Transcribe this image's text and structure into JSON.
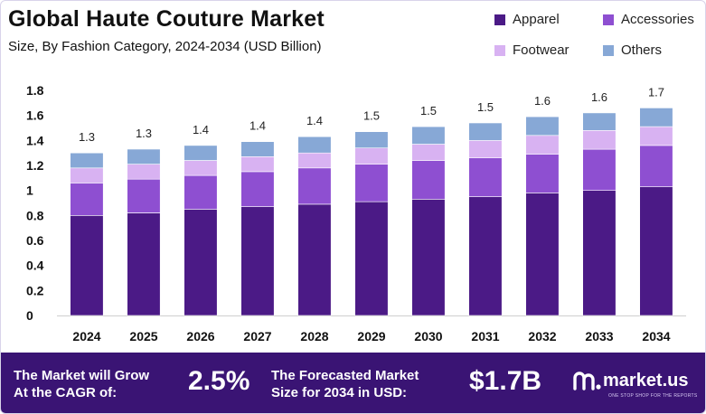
{
  "header": {
    "title": "Global Haute Couture Market",
    "subtitle": "Size, By Fashion Category, 2024-2034 (USD Billion)"
  },
  "colors": {
    "apparel": "#4b1a86",
    "accessories": "#8e4fd1",
    "footwear": "#d8b2f2",
    "others": "#87a8d6",
    "footer_bg": "#3a1474"
  },
  "chart_data": {
    "type": "bar",
    "stacked": true,
    "categories": [
      "2024",
      "2025",
      "2026",
      "2027",
      "2028",
      "2029",
      "2030",
      "2031",
      "2032",
      "2033",
      "2034"
    ],
    "series": [
      {
        "name": "Apparel",
        "values": [
          0.8,
          0.82,
          0.85,
          0.87,
          0.89,
          0.91,
          0.93,
          0.95,
          0.98,
          1.0,
          1.03
        ]
      },
      {
        "name": "Accessories",
        "values": [
          0.26,
          0.27,
          0.27,
          0.28,
          0.29,
          0.3,
          0.31,
          0.31,
          0.31,
          0.33,
          0.33
        ]
      },
      {
        "name": "Footwear",
        "values": [
          0.12,
          0.12,
          0.12,
          0.12,
          0.12,
          0.13,
          0.13,
          0.14,
          0.15,
          0.15,
          0.15
        ]
      },
      {
        "name": "Others",
        "values": [
          0.12,
          0.12,
          0.12,
          0.12,
          0.13,
          0.13,
          0.14,
          0.14,
          0.15,
          0.14,
          0.15
        ]
      }
    ],
    "totals": [
      "1.3",
      "1.3",
      "1.4",
      "1.4",
      "1.4",
      "1.5",
      "1.5",
      "1.5",
      "1.6",
      "1.6",
      "1.7"
    ],
    "yticks": [
      "0",
      "0.2",
      "0.4",
      "0.6",
      "0.8",
      "1",
      "1.2",
      "1.4",
      "1.6",
      "1.8"
    ],
    "ylim": [
      0,
      1.8
    ],
    "grid": false,
    "legend_position": "top-right"
  },
  "footer": {
    "cagr_label_line1": "The Market will Grow",
    "cagr_label_line2": "At the CAGR of:",
    "cagr_value": "2.5%",
    "forecast_label_line1": "The Forecasted Market",
    "forecast_label_line2": "Size for 2034 in USD:",
    "forecast_value": "$1.7B",
    "brand": "market.us",
    "brand_tagline": "ONE STOP SHOP FOR THE REPORTS"
  }
}
